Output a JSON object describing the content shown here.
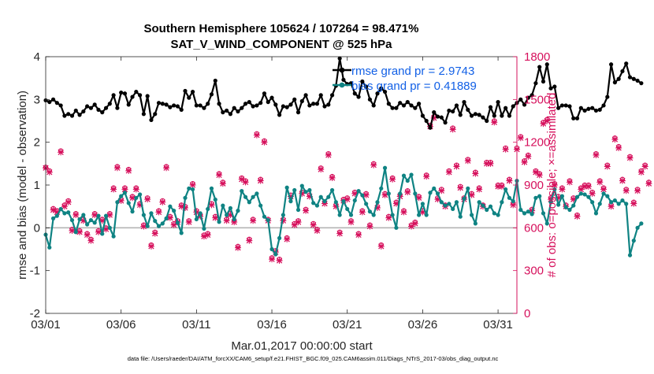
{
  "chart_data": {
    "type": "line",
    "title": "Southern Hemisphere 105624 / 107264 = 98.471%",
    "subtitle": "SAT_V_WIND_COMPONENT @ 525 hPa",
    "xlabel": "Mar.01,2017 00:00:00 start",
    "ylabel_left": "rmse and bias (model - observation)",
    "ylabel_right": "# of obs: o=possible; ×=assimilated",
    "footer": "data file: /Users/raeder/DAI/ATM_forcXX/CAM6_setup/f.e21.FHIST_BGC.f09_025.CAM6assim.011/Diags_NTrS_2017-03/obs_diag_output.nc",
    "x_range": [
      0,
      31.25
    ],
    "ylim_left": [
      -2,
      4
    ],
    "ylim_right": [
      0,
      1800
    ],
    "x_ticks": [
      {
        "x": 0,
        "label": "03/01"
      },
      {
        "x": 5,
        "label": "03/06"
      },
      {
        "x": 10,
        "label": "03/11"
      },
      {
        "x": 15,
        "label": "03/16"
      },
      {
        "x": 20,
        "label": "03/21"
      },
      {
        "x": 25,
        "label": "03/26"
      },
      {
        "x": 30,
        "label": "03/31"
      }
    ],
    "y_ticks_left": [
      "-2",
      "-1",
      "0",
      "1",
      "2",
      "3",
      "4"
    ],
    "y_ticks_right": [
      "0",
      "300",
      "600",
      "900",
      "1200",
      "1500",
      "1800"
    ],
    "legend": {
      "position": "top-right",
      "entries": [
        {
          "label": "rmse grand pr = 2.9743",
          "color": "#000000"
        },
        {
          "label": "bias grand pr = 0.41889",
          "color": "#0f8383"
        }
      ]
    },
    "colors": {
      "rmse": "#000000",
      "bias": "#0f8383",
      "obs": "#d6105c",
      "zero_line": "#b4b4b4"
    },
    "series": [
      {
        "name": "rmse",
        "axis": "left",
        "x_start": 0,
        "x_step": 0.25,
        "values": [
          2.98,
          2.94,
          3.0,
          2.92,
          2.86,
          2.62,
          2.66,
          2.62,
          2.74,
          2.64,
          2.72,
          2.84,
          2.8,
          2.88,
          2.76,
          2.7,
          2.8,
          2.9,
          3.1,
          2.8,
          3.16,
          3.14,
          2.88,
          3.06,
          3.18,
          3.1,
          2.66,
          3.08,
          2.52,
          2.66,
          2.92,
          2.9,
          2.88,
          2.82,
          2.86,
          2.84,
          2.76,
          3.2,
          3.04,
          3.18,
          2.86,
          2.86,
          2.8,
          2.9,
          3.12,
          3.44,
          2.9,
          2.7,
          2.74,
          2.66,
          2.8,
          2.72,
          2.8,
          2.9,
          2.94,
          2.84,
          2.86,
          2.92,
          3.14,
          2.94,
          3.04,
          2.88,
          2.64,
          2.84,
          2.82,
          2.88,
          3.0,
          2.7,
          2.96,
          3.1,
          2.86,
          2.9,
          2.9,
          3.1,
          2.84,
          2.88,
          3.1,
          3.32,
          3.96,
          3.46,
          3.36,
          3.38,
          3.14,
          3.06,
          3.42,
          3.3,
          3.0,
          2.86,
          3.14,
          3.26,
          3.18,
          2.9,
          2.8,
          2.8,
          2.92,
          2.86,
          2.94,
          2.86,
          2.8,
          2.9,
          2.62,
          2.5,
          2.34,
          2.7,
          2.6,
          2.58,
          2.46,
          2.74,
          2.72,
          2.86,
          2.64,
          2.94,
          2.76,
          2.62,
          2.66,
          2.64,
          2.58,
          2.5,
          2.82,
          2.62,
          2.94,
          2.62,
          2.8,
          2.62,
          2.84,
          2.92,
          3.0,
          2.88,
          3.04,
          3.1,
          3.38,
          3.76,
          3.42,
          3.82,
          3.26,
          3.3,
          2.8,
          2.86,
          2.86,
          2.84,
          2.56,
          2.56,
          2.8,
          2.74,
          2.78,
          2.8,
          2.74,
          2.76,
          2.86,
          3.06,
          3.82,
          3.4,
          3.48,
          3.66,
          3.84,
          3.52,
          3.48,
          3.44,
          3.38
        ]
      },
      {
        "name": "bias",
        "axis": "left",
        "x_start": 0,
        "x_step": 0.25,
        "values": [
          -0.16,
          -0.46,
          0.22,
          0.28,
          0.44,
          0.34,
          0.36,
          0.18,
          -0.1,
          0.2,
          0.3,
          0.08,
          0.18,
          0.12,
          0.28,
          -0.14,
          0.28,
          0.0,
          -0.2,
          0.6,
          0.74,
          0.82,
          0.58,
          0.38,
          0.7,
          0.78,
          0.3,
          0.04,
          0.34,
          0.16,
          0.04,
          0.1,
          0.22,
          0.5,
          0.4,
          0.12,
          -0.12,
          0.7,
          0.92,
          0.9,
          0.2,
          0.34,
          -0.02,
          0.44,
          0.92,
          0.66,
          0.14,
          0.52,
          0.3,
          0.46,
          0.2,
          0.4,
          0.86,
          0.72,
          0.6,
          0.72,
          0.8,
          0.52,
          0.26,
          0.18,
          -0.5,
          -0.62,
          -0.24,
          0.3,
          0.94,
          0.62,
          0.88,
          0.42,
          0.98,
          0.84,
          0.88,
          0.58,
          0.52,
          0.72,
          0.62,
          0.72,
          0.88,
          0.6,
          0.3,
          0.62,
          0.44,
          0.3,
          0.64,
          0.86,
          0.76,
          0.56,
          0.38,
          0.3,
          0.6,
          0.92,
          1.4,
          0.8,
          0.3,
          0.0,
          0.8,
          1.22,
          1.1,
          1.24,
          0.8,
          0.3,
          0.56,
          0.3,
          0.82,
          0.92,
          0.8,
          0.6,
          0.52,
          0.56,
          0.44,
          0.6,
          0.26,
          0.68,
          0.92,
          0.3,
          0.1,
          0.6,
          0.52,
          0.42,
          0.5,
          0.34,
          0.3,
          0.6,
          0.9,
          0.7,
          0.62,
          1.1,
          0.42,
          0.34,
          0.38,
          0.32,
          0.7,
          0.74,
          0.34,
          0.1,
          0.6,
          0.9,
          0.54,
          0.74,
          0.48,
          0.42,
          0.52,
          0.72,
          0.8,
          0.78,
          0.72,
          0.6,
          0.34,
          0.56,
          0.8,
          0.74,
          0.6,
          0.64,
          0.56,
          0.64,
          0.56,
          -0.64,
          -0.3,
          -0.0,
          0.1
        ]
      },
      {
        "name": "obs_possible",
        "axis": "right",
        "x_start": 0,
        "x_step": 0.25,
        "values": [
          1025,
          1000,
          735,
          720,
          1140,
          760,
          790,
          590,
          700,
          580,
          660,
          560,
          520,
          700,
          580,
          660,
          600,
          700,
          880,
          1030,
          800,
          880,
          1010,
          820,
          880,
          770,
          620,
          810,
          480,
          570,
          720,
          790,
          1030,
          680,
          630,
          650,
          760,
          750,
          650,
          910,
          720,
          690,
          550,
          560,
          770,
          680,
          980,
          920,
          660,
          700,
          650,
          470,
          950,
          930,
          520,
          660,
          1260,
          940,
          1210,
          660,
          390,
          440,
          380,
          660,
          530,
          830,
          630,
          650,
          850,
          730,
          830,
          630,
          590,
          1020,
          780,
          1120,
          960,
          760,
          570,
          800,
          810,
          650,
          850,
          560,
          720,
          840,
          620,
          1050,
          750,
          480,
          840,
          680,
          950,
          780,
          830,
          720,
          860,
          620,
          640,
          820,
          720,
          970,
          1320,
          1380,
          810,
          870,
          760,
          1000,
          1300,
          1040,
          890,
          810,
          1080,
          840,
          990,
          880,
          760,
          1060,
          1060,
          1350,
          900,
          900,
          1160,
          940,
          770,
          1160,
          1240,
          1070,
          1110,
          730,
          1000,
          980,
          1340,
          1360,
          810,
          910,
          820,
          880,
          760,
          930,
          810,
          690,
          880,
          900,
          900,
          850,
          1120,
          930,
          880,
          1040,
          760,
          1230,
          1170,
          940,
          870,
          1100,
          780,
          870,
          1000,
          1040,
          920
        ]
      },
      {
        "name": "obs_assimilated",
        "axis": "right",
        "x_start": 0,
        "x_step": 0.25,
        "values": [
          1020,
          990,
          725,
          710,
          1130,
          750,
          780,
          580,
          690,
          570,
          650,
          550,
          510,
          690,
          570,
          650,
          590,
          690,
          870,
          1020,
          790,
          870,
          1000,
          810,
          870,
          760,
          610,
          800,
          470,
          560,
          710,
          780,
          1020,
          670,
          620,
          640,
          750,
          740,
          640,
          900,
          710,
          680,
          540,
          550,
          760,
          670,
          970,
          910,
          650,
          690,
          640,
          460,
          940,
          920,
          510,
          650,
          1250,
          930,
          1200,
          650,
          380,
          430,
          370,
          650,
          520,
          820,
          620,
          640,
          840,
          720,
          820,
          620,
          580,
          1010,
          770,
          1110,
          950,
          750,
          560,
          790,
          800,
          640,
          840,
          550,
          710,
          830,
          610,
          1040,
          740,
          470,
          830,
          670,
          940,
          770,
          820,
          710,
          850,
          610,
          630,
          810,
          710,
          960,
          1310,
          1370,
          800,
          860,
          750,
          990,
          1290,
          1030,
          880,
          800,
          1070,
          830,
          980,
          870,
          750,
          1050,
          1050,
          1340,
          890,
          890,
          1150,
          930,
          760,
          1150,
          1230,
          1060,
          1100,
          720,
          990,
          970,
          1330,
          1350,
          800,
          900,
          810,
          870,
          750,
          920,
          800,
          680,
          870,
          890,
          890,
          840,
          1110,
          920,
          870,
          1030,
          750,
          1220,
          1160,
          930,
          860,
          1090,
          770,
          860,
          990,
          1030,
          910
        ]
      }
    ]
  }
}
